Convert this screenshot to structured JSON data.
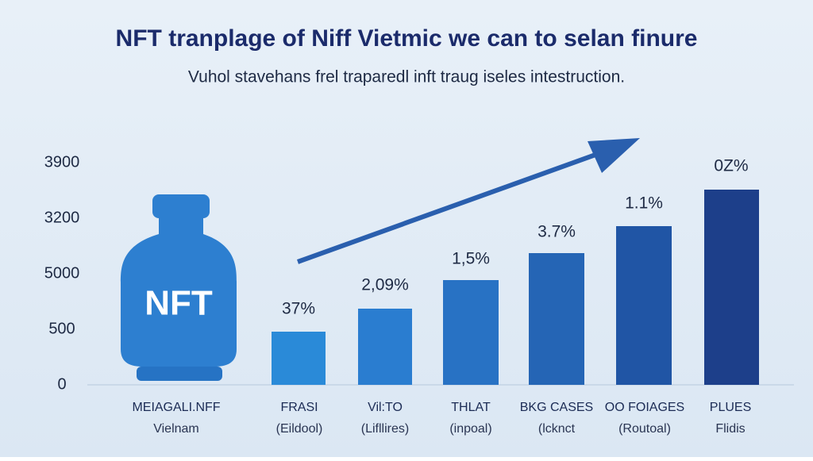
{
  "header": {
    "title": "NFT tranplage of Niff Vietmic we can to selan finure",
    "subtitle": "Vuhol stavehans frel traparedl inft traug iseles intestruction."
  },
  "y_axis_labels": [
    "3900",
    "3200",
    "5000",
    "500",
    "0"
  ],
  "icon_label": "NFT",
  "bars": [
    {
      "label": "37%",
      "name": "FRASI",
      "sub": "(Eildool)"
    },
    {
      "label": "2,09%",
      "name": "Vil:TO",
      "sub": "(Lifllires)"
    },
    {
      "label": "1,5%",
      "name": "THLAT",
      "sub": "(inpoal)"
    },
    {
      "label": "3.7%",
      "name": "BKG CASES",
      "sub": "(lcknct"
    },
    {
      "label": "1.1%",
      "name": "OO FOIAGES",
      "sub": "(Routoal)"
    },
    {
      "label": "0Z%",
      "name": "PLUES",
      "sub": "Flidis"
    }
  ],
  "first_category": {
    "name": "MEIAGALI.NFF",
    "sub": "Vielnam"
  }
}
